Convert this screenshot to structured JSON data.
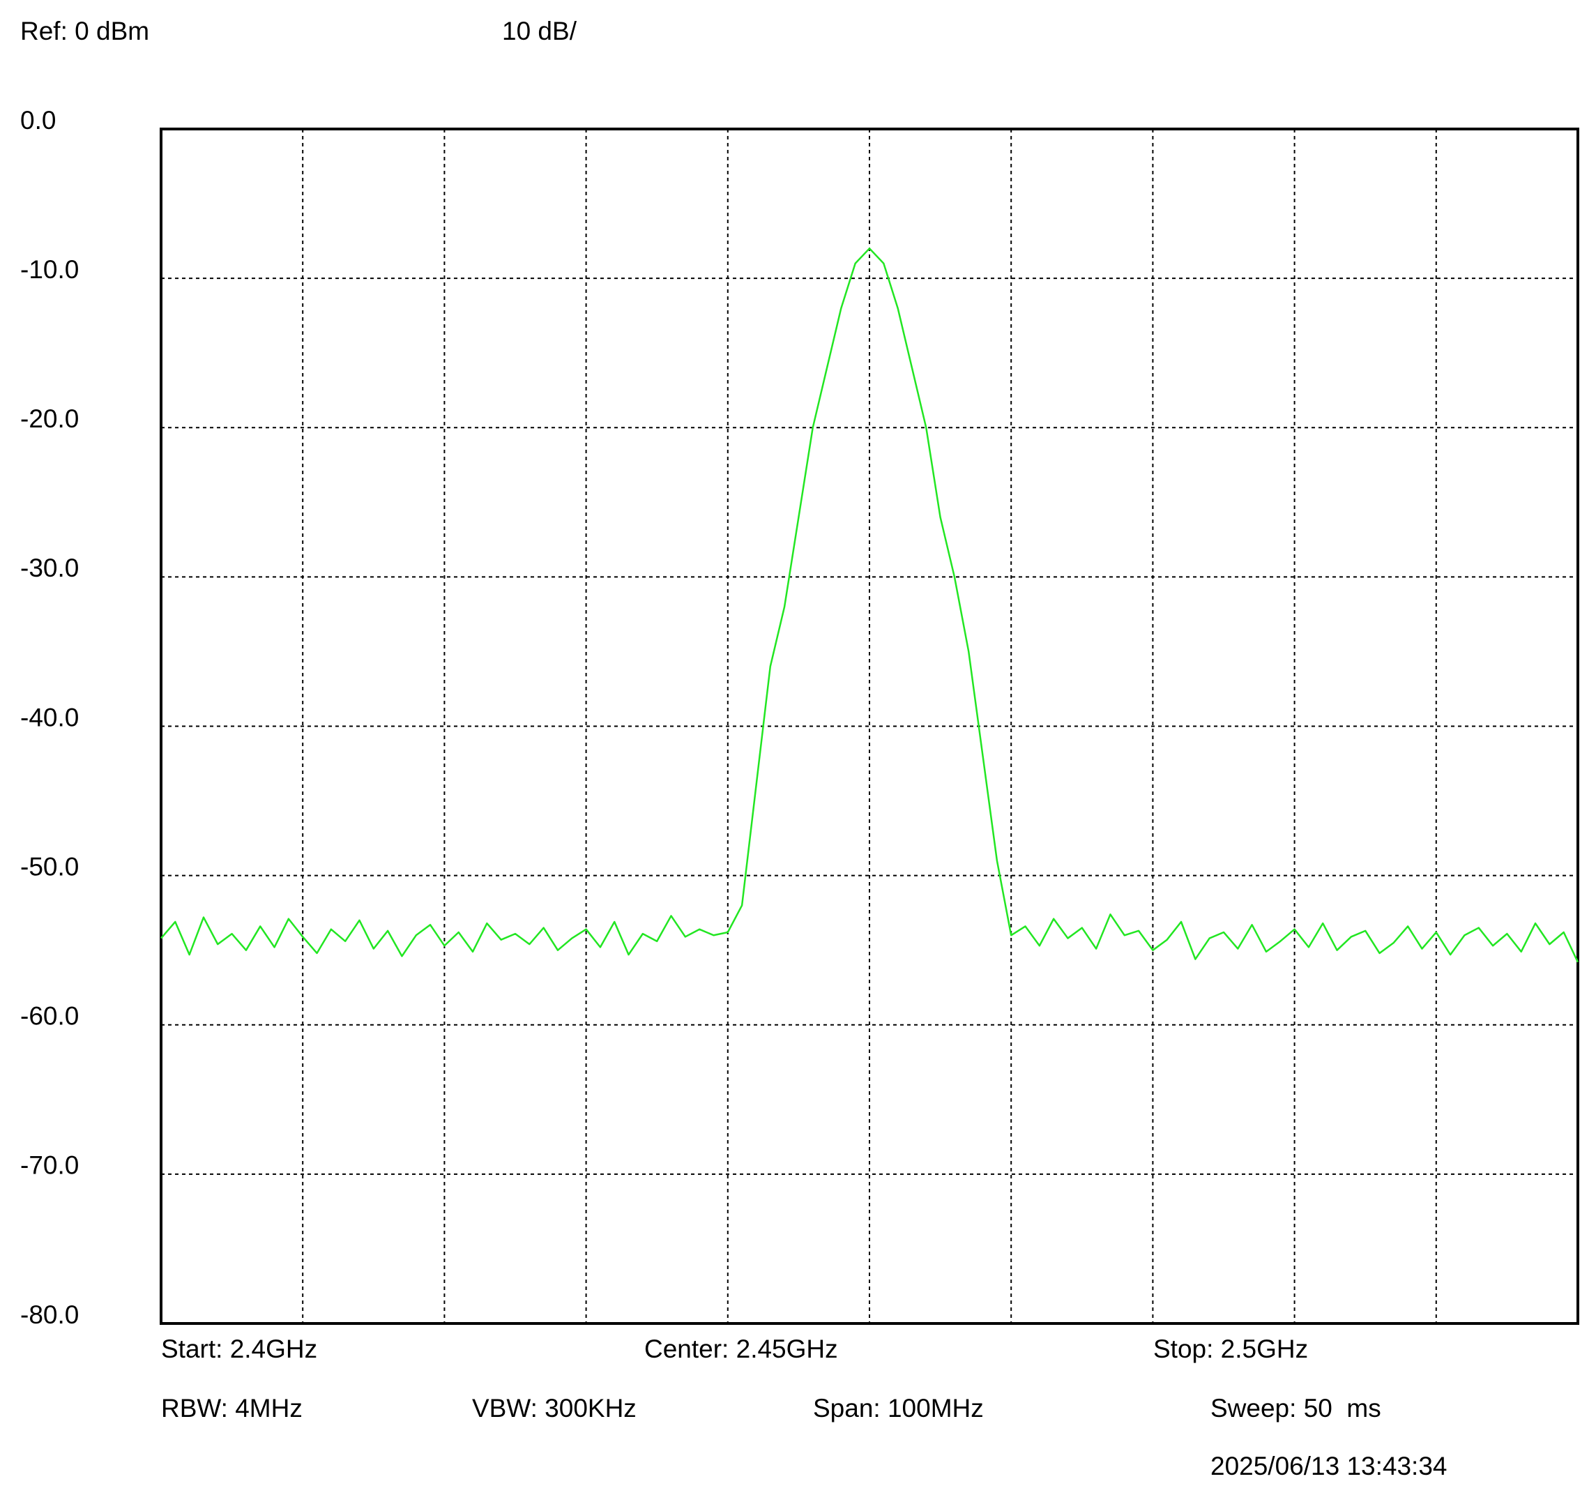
{
  "chart_data": {
    "type": "line",
    "annotations": [
      "Ref: 0 dBm",
      "10 dB/",
      "Start: 2.4GHz",
      "Center: 2.45GHz",
      "Stop: 2.5GHz",
      "RBW: 4MHz",
      "VBW: 300KHz",
      "Span: 100MHz",
      "Sweep: 50  ms",
      "2025/06/13 13:43:34"
    ],
    "color": "#22e622",
    "xlim": [
      2.4,
      2.5
    ],
    "xticks": [
      2.4,
      2.41,
      2.42,
      2.43,
      2.44,
      2.45,
      2.46,
      2.47,
      2.48,
      2.49,
      2.5
    ],
    "ylim": [
      -80,
      0
    ],
    "yticks": [
      {
        "value": 0,
        "label": "0.0"
      },
      {
        "value": -10,
        "label": "-10.0"
      },
      {
        "value": -20,
        "label": "-20.0"
      },
      {
        "value": -30,
        "label": "-30.0"
      },
      {
        "value": -40,
        "label": "-40.0"
      },
      {
        "value": -50,
        "label": "-50.0"
      },
      {
        "value": -60,
        "label": "-60.0"
      },
      {
        "value": -70,
        "label": "-70.0"
      },
      {
        "value": -80,
        "label": "-80.0"
      }
    ],
    "grid": true,
    "x": [
      2.4,
      2.401,
      2.402,
      2.403,
      2.404,
      2.405,
      2.406,
      2.407,
      2.408,
      2.409,
      2.41,
      2.411,
      2.412,
      2.413,
      2.414,
      2.415,
      2.416,
      2.417,
      2.418,
      2.419,
      2.42,
      2.421,
      2.422,
      2.423,
      2.424,
      2.425,
      2.426,
      2.427,
      2.428,
      2.429,
      2.43,
      2.431,
      2.432,
      2.433,
      2.434,
      2.435,
      2.436,
      2.437,
      2.438,
      2.439,
      2.44,
      2.441,
      2.442,
      2.443,
      2.444,
      2.445,
      2.446,
      2.447,
      2.448,
      2.449,
      2.45,
      2.451,
      2.452,
      2.453,
      2.454,
      2.455,
      2.456,
      2.457,
      2.458,
      2.459,
      2.46,
      2.461,
      2.462,
      2.463,
      2.464,
      2.465,
      2.466,
      2.467,
      2.468,
      2.469,
      2.47,
      2.471,
      2.472,
      2.473,
      2.474,
      2.475,
      2.476,
      2.477,
      2.478,
      2.479,
      2.48,
      2.481,
      2.482,
      2.483,
      2.484,
      2.485,
      2.486,
      2.487,
      2.488,
      2.489,
      2.49,
      2.491,
      2.492,
      2.493,
      2.494,
      2.495,
      2.496,
      2.497,
      2.498,
      2.499,
      2.5
    ],
    "values": [
      -54.2,
      -53.1,
      -55.3,
      -52.8,
      -54.6,
      -53.9,
      -55.0,
      -53.4,
      -54.8,
      -52.9,
      -54.1,
      -55.2,
      -53.6,
      -54.4,
      -53.0,
      -54.9,
      -53.7,
      -55.4,
      -54.0,
      -53.3,
      -54.7,
      -53.8,
      -55.1,
      -53.2,
      -54.3,
      -53.9,
      -54.6,
      -53.5,
      -55.0,
      -54.2,
      -53.6,
      -54.8,
      -53.1,
      -55.3,
      -53.9,
      -54.4,
      -52.7,
      -54.1,
      -53.6,
      -54.0,
      -53.8,
      -52,
      -44,
      -36,
      -32,
      -26,
      -20,
      -16,
      -12,
      -9,
      -8,
      -9,
      -12,
      -16,
      -20,
      -26,
      -30,
      -35,
      -42,
      -49,
      -54,
      -53.4,
      -54.7,
      -52.9,
      -54.2,
      -53.5,
      -54.9,
      -52.6,
      -54.0,
      -53.7,
      -55.0,
      -54.3,
      -53.1,
      -55.6,
      -54.2,
      -53.8,
      -54.9,
      -53.3,
      -55.1,
      -54.4,
      -53.6,
      -54.8,
      -53.2,
      -55.0,
      -54.1,
      -53.7,
      -55.2,
      -54.5,
      -53.4,
      -54.9,
      -53.8,
      -55.3,
      -54.0,
      -53.5,
      -54.7,
      -53.9,
      -55.1,
      -53.2,
      -54.6,
      -53.8,
      -55.8
    ]
  }
}
